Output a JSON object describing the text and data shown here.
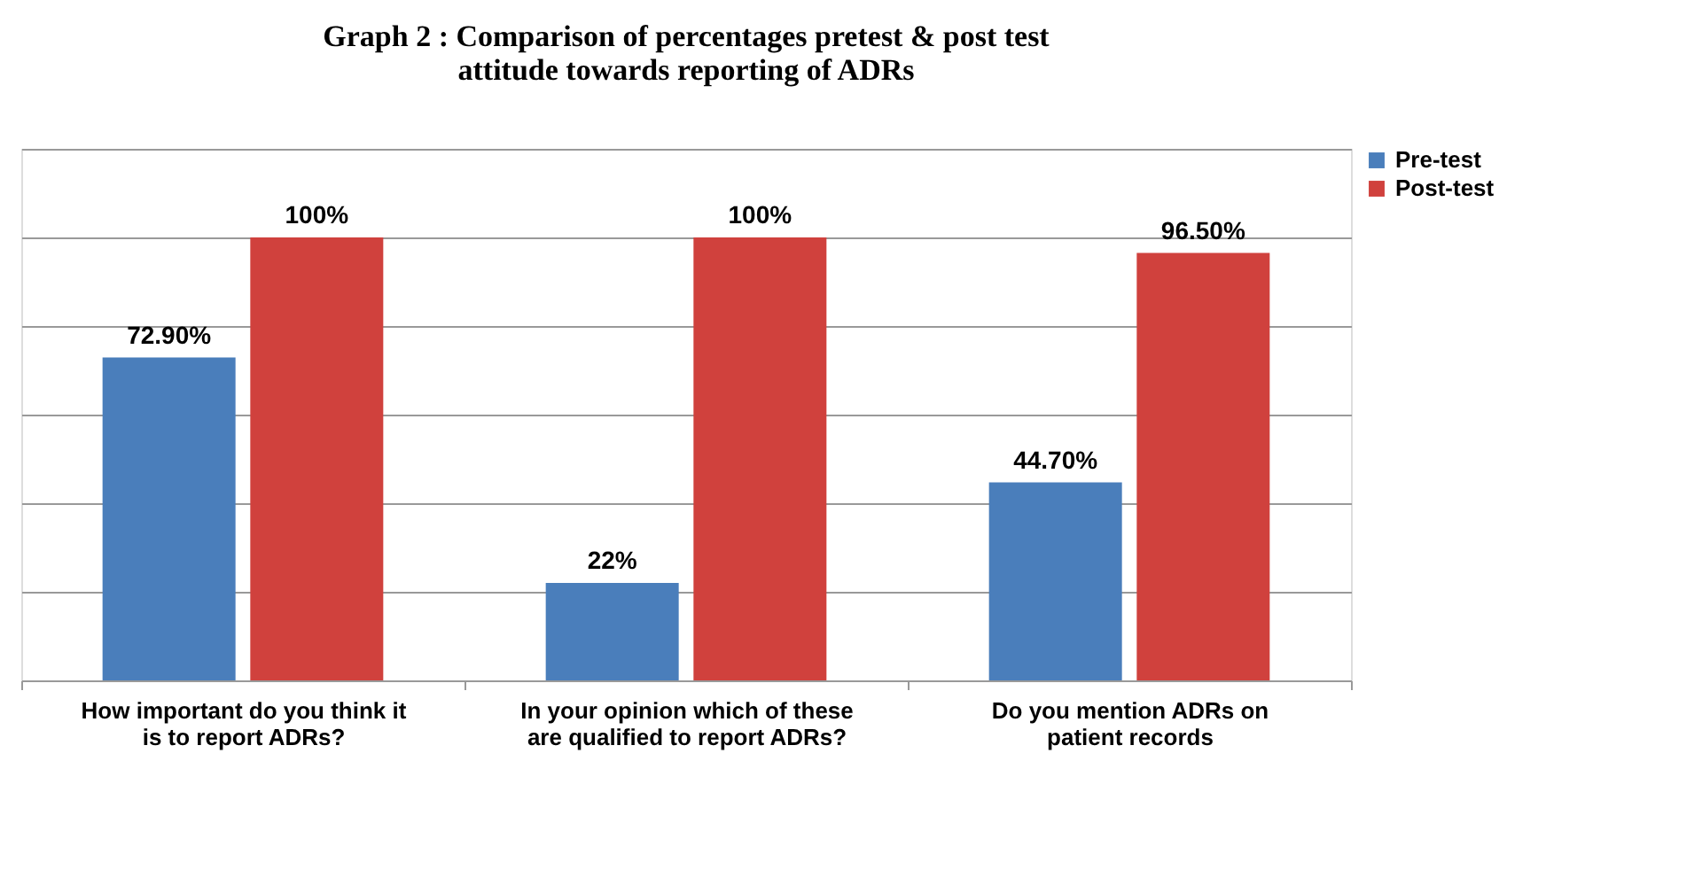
{
  "chart_data": {
    "type": "bar",
    "title": "Graph 2 : Comparison of percentages  pretest & post test attitude towards reporting of ADRs",
    "categories": [
      "How important do you think it is to report ADRs?",
      "In your opinion which of these are qualified to report ADRs?",
      "Do you  mention ADRs on patient records"
    ],
    "series": [
      {
        "name": "Pre-test",
        "color": "#4a7ebb",
        "values": [
          72.9,
          22,
          44.7
        ],
        "value_labels": [
          "72.90%",
          "22%",
          "44.70%"
        ]
      },
      {
        "name": "Post-test",
        "color": "#d0413d",
        "values": [
          100,
          100,
          96.5
        ],
        "value_labels": [
          "100%",
          "100%",
          "96.50%"
        ]
      }
    ],
    "ylim": [
      0,
      120
    ],
    "yticks": [
      {
        "value": 0,
        "label": null
      },
      {
        "value": 20,
        "label": null
      },
      {
        "value": 40,
        "label": null
      },
      {
        "value": 60,
        "label": null
      },
      {
        "value": 80,
        "label": null
      },
      {
        "value": 100,
        "label": null
      },
      {
        "value": 120,
        "label": null
      }
    ],
    "tick_labels": "x",
    "grid": "y",
    "legend": "right"
  }
}
